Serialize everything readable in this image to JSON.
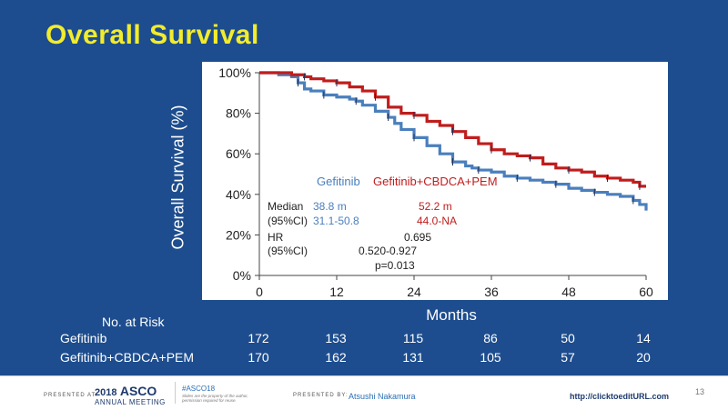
{
  "slide": {
    "title": "Overall Survival"
  },
  "colors": {
    "background": "#1d4d8e",
    "title": "#f2ec2c",
    "gefitinib": "#4a7fbd",
    "combo": "#c01d1d"
  },
  "chart_data": {
    "type": "line",
    "title": "",
    "xlabel": "Months",
    "ylabel": "Overall Survival (%)",
    "xlim": [
      0,
      60
    ],
    "ylim": [
      0,
      100
    ],
    "x_ticks": [
      "0",
      "12",
      "24",
      "36",
      "48",
      "60"
    ],
    "y_ticks": [
      "0%",
      "20%",
      "40%",
      "60%",
      "80%",
      "100%"
    ],
    "grid": false,
    "series": [
      {
        "name": "Gefitinib",
        "color": "#4a7fbd",
        "x": [
          0,
          3,
          5,
          6,
          7,
          8,
          10,
          12,
          14,
          15,
          16,
          18,
          20,
          21,
          22,
          24,
          26,
          28,
          30,
          32,
          33,
          34,
          36,
          38,
          40,
          42,
          44,
          46,
          48,
          50,
          52,
          54,
          56,
          58,
          59,
          60
        ],
        "y": [
          100,
          99,
          98,
          95,
          92,
          91,
          89,
          88,
          87,
          86,
          84,
          81,
          78,
          75,
          72,
          68,
          64,
          60,
          56,
          54,
          53,
          52,
          51,
          49,
          48,
          47,
          46,
          45,
          43,
          42,
          41,
          40,
          39,
          37,
          35,
          32
        ]
      },
      {
        "name": "Gefitinib+CBDCA+PEM",
        "color": "#c01d1d",
        "x": [
          0,
          3,
          5,
          7,
          8,
          10,
          12,
          14,
          16,
          18,
          20,
          22,
          24,
          26,
          28,
          30,
          32,
          34,
          36,
          38,
          40,
          42,
          44,
          46,
          48,
          50,
          52,
          54,
          56,
          58,
          59,
          60
        ],
        "y": [
          100,
          100,
          99,
          98,
          97,
          96,
          95,
          93,
          91,
          88,
          83,
          80,
          79,
          76,
          74,
          71,
          68,
          65,
          62,
          60,
          59,
          58,
          55,
          53,
          52,
          51,
          49,
          48,
          47,
          46,
          44,
          44
        ]
      }
    ],
    "annotations": {
      "legend_gef": "Gefitinib",
      "legend_combo": "Gefitinib+CBDCA+PEM",
      "median_label": "Median",
      "median_gef": "38.8 m",
      "median_combo": "52.2 m",
      "ci_label": "(95%CI)",
      "ci_gef": "31.1-50.8",
      "ci_combo": "44.0-NA",
      "hr_label": "HR",
      "hr_value": "0.695",
      "hr_ci_label": "(95%CI)",
      "hr_ci_value": "0.520-0.927",
      "p_value": "p=0.013"
    }
  },
  "at_risk": {
    "header": "No. at Risk",
    "rows": [
      {
        "label": "Gefitinib",
        "values": [
          "172",
          "153",
          "115",
          "86",
          "50",
          "14"
        ]
      },
      {
        "label": "Gefitinib+CBDCA+PEM",
        "values": [
          "170",
          "162",
          "131",
          "105",
          "57",
          "20"
        ]
      }
    ]
  },
  "footer": {
    "presented_at": "PRESENTED AT:",
    "year": "2018",
    "asco": "ASCO",
    "annual_meeting": "ANNUAL MEETING",
    "hashtag": "#ASCO18",
    "note": "Slides are the property of the author, permission required for reuse.",
    "presented_by": "PRESENTED BY:",
    "presenter": "Atsushi Nakamura",
    "url": "http://clicktoeditURL.com",
    "page": "13"
  }
}
